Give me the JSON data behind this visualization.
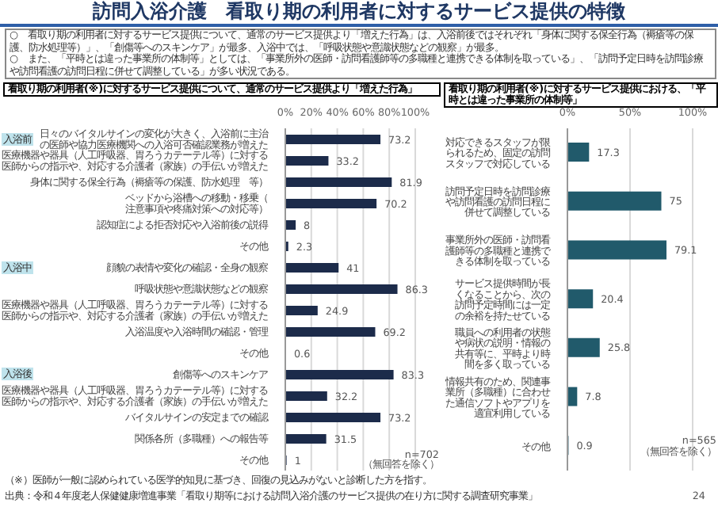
{
  "chart_data": [
    {
      "type": "other",
      "title": "訪問入浴介護　看取り期の利用者に対するサービス提供の特徴",
      "annotations": [
        "○　看取り期の利用者に対するサービス提供について、通常のサービス提供より「増えた行為」は、入浴前後ではそれぞれ「身体に関する保全行為（褥瘡等の保護、防水処理等）」、「創傷等へのスキンケア」が最多、入浴中では、「呼吸状態や意識状態などの観察」が最多。",
        "○　また、「平時とは違った事業所の体制等」としては、「事業所外の医師・訪問看護師等の多職種と連携できる体制を取っている」、「訪問予定日時を訪問診療や訪問看護の訪問日程に併せて調整している」が多い状況である。",
        "（※）医師が一般に認められている医学的知見に基づき、回復の見込みがないと診断した方を指す。",
        "出典：令和４年度老人保健健康増進事業「看取り期等における訪問入浴介護のサービス提供の在り方に関する調査研究事業」",
        "24"
      ]
    },
    {
      "type": "bar",
      "orientation": "horizontal",
      "title": "看取り期の利用者(※)に対するサービス提供について、通常のサービス提供より「増えた行為」",
      "categories": [
        "日々のバイタルサインの変化が大きく、入浴前に主治の医師や協力医療機関への入浴可否確認業務が増えた",
        "医療機器や器具（人工呼吸器、胃ろうカテーテル等）に対する医師からの指示や、対応する介護者（家族）の手伝いが増えた",
        "身体に関する保全行為（褥瘡等の保護、防水処理　等）",
        "ベッドから浴槽への移動・移乗（注意事項や疼痛対策への対応等）",
        "認知症による拒否対応や入浴前後の説得",
        "その他",
        "顔貌の表情や変化の確認・全身の観察",
        "呼吸状態や意識状態などの観察",
        "医療機器や器具（人工呼吸器、胃ろうカテーテル等）に対する医師からの指示や、対応する介護者（家族）の手伝いが増えた",
        "入浴温度や入浴時間の確認・管理",
        "その他",
        "創傷等へのスキンケア",
        "医療機器や器具（人工呼吸器、胃ろうカテーテル等）に対する医師からの指示や、対応する介護者（家族）の手伝いが増えた",
        "バイタルサインの安定までの確認",
        "関係各所（多職種）への報告等",
        "その他"
      ],
      "values": [
        73.2,
        33.2,
        81.9,
        70.2,
        8.0,
        2.3,
        41.0,
        86.3,
        24.9,
        69.2,
        0.6,
        83.3,
        32.2,
        73.2,
        31.5,
        1.0
      ],
      "color": "#1c2b4a",
      "data_labels": true,
      "grid": "x",
      "xlim": [
        0,
        100
      ],
      "xticks": [
        {
          "value": 0,
          "label": "0%"
        },
        {
          "value": 20,
          "label": "20%"
        },
        {
          "value": 40,
          "label": "40%"
        },
        {
          "value": 60,
          "label": "60%"
        },
        {
          "value": 80,
          "label": "80%"
        },
        {
          "value": 100,
          "label": "100%"
        }
      ],
      "annotations": [
        "入浴前",
        "入浴中",
        "入浴後",
        "n=702",
        "（無回答を除く）"
      ]
    },
    {
      "type": "bar",
      "orientation": "horizontal",
      "title": "看取り期の利用者(※)に対するサービス提供における、「平時とは違った事業所の体制等」",
      "categories": [
        "対応できるスタッフが限られるため、固定の訪問スタッフで対応している",
        "訪問予定日時を訪問診療や訪問看護の訪問日程に併せて調整している",
        "事業所外の医師・訪問看護師等の多職種と連携できる体制を取っている",
        "サービス提供時間が長くなることから、次の訪問予定時間には一定の余裕を持たせている",
        "職員への利用者の状態や病状の説明・情報の共有等に、平時より時間を多く取っている",
        "情報共有のため、関連事業所（多職種）に合わせた通信ソフトやアプリを適宜利用している",
        "その他"
      ],
      "values": [
        17.3,
        75.0,
        79.1,
        20.4,
        25.8,
        7.8,
        0.9
      ],
      "color": "#215a6b",
      "data_labels": true,
      "grid": "x",
      "xlim": [
        0,
        100
      ],
      "xticks": [
        {
          "value": 0,
          "label": "0%"
        },
        {
          "value": 50,
          "label": "50%"
        },
        {
          "value": 100,
          "label": "100%"
        }
      ],
      "annotations": [
        "n=565",
        "（無回答を除く）"
      ]
    }
  ]
}
